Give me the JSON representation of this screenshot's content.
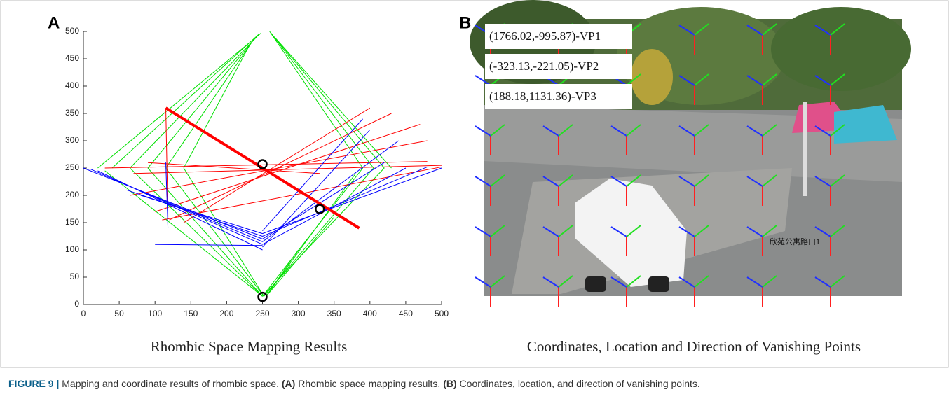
{
  "panel_a": {
    "label": "A",
    "caption": "Rhombic Space Mapping Results"
  },
  "panel_b": {
    "label": "B",
    "caption": "Coordinates, Location and Direction of Vanishing Points",
    "boxes": [
      "(1766.02,-995.87)-VP1",
      "(-323.13,-221.05)-VP2",
      "(188.18,1131.36)-VP3"
    ],
    "sign": "欣苑公寓路口1"
  },
  "figure_caption": {
    "label": "FIGURE 9 |",
    "text_1": "Mapping and coordinate results of rhombic space.",
    "ref_a": "(A)",
    "text_2": "Rhombic space mapping results.",
    "ref_b": "(B)",
    "text_3": "Coordinates, location, and direction of vanishing points."
  },
  "chart_data": {
    "type": "segments",
    "xlim": [
      0,
      500
    ],
    "ylim": [
      0,
      500
    ],
    "xticks": [
      0,
      50,
      100,
      150,
      200,
      250,
      300,
      350,
      400,
      450,
      500
    ],
    "yticks": [
      0,
      50,
      100,
      150,
      200,
      250,
      300,
      350,
      400,
      450,
      500
    ],
    "series": [
      {
        "color": "#00e000",
        "segments": [
          [
            248,
            497,
            20,
            250
          ],
          [
            245,
            495,
            40,
            250
          ],
          [
            242,
            490,
            65,
            250
          ],
          [
            238,
            485,
            90,
            250
          ],
          [
            235,
            480,
            115,
            250
          ],
          [
            232,
            475,
            140,
            250
          ],
          [
            260,
            500,
            390,
            250
          ],
          [
            262,
            497,
            405,
            250
          ],
          [
            265,
            492,
            420,
            250
          ],
          [
            268,
            488,
            430,
            250
          ],
          [
            65,
            250,
            250,
            15
          ],
          [
            90,
            250,
            250,
            15
          ],
          [
            115,
            250,
            252,
            15
          ],
          [
            140,
            250,
            252,
            15
          ],
          [
            30,
            245,
            250,
            15
          ],
          [
            390,
            250,
            250,
            15
          ],
          [
            405,
            250,
            252,
            15
          ],
          [
            420,
            250,
            250,
            15
          ],
          [
            380,
            240,
            255,
            15
          ],
          [
            350,
            160,
            255,
            15
          ],
          [
            300,
            100,
            255,
            15
          ]
        ]
      },
      {
        "color": "#ff0000",
        "segments": [
          [
            30,
            250,
            480,
            262
          ],
          [
            65,
            200,
            480,
            300
          ],
          [
            100,
            170,
            470,
            330
          ],
          [
            120,
            155,
            430,
            350
          ],
          [
            140,
            150,
            400,
            360
          ],
          [
            70,
            240,
            500,
            255
          ],
          [
            115,
            360,
            118,
            160
          ],
          [
            110,
            155,
            500,
            252
          ],
          [
            90,
            260,
            330,
            240
          ]
        ]
      },
      {
        "color": "#0000ff",
        "segments": [
          [
            0,
            250,
            250,
            120
          ],
          [
            10,
            248,
            250,
            110
          ],
          [
            20,
            245,
            250,
            100
          ],
          [
            40,
            230,
            250,
            115
          ],
          [
            60,
            210,
            250,
            125
          ],
          [
            80,
            200,
            250,
            130
          ],
          [
            250,
            120,
            420,
            260
          ],
          [
            250,
            110,
            450,
            250
          ],
          [
            250,
            125,
            480,
            252
          ],
          [
            250,
            130,
            500,
            250
          ],
          [
            250,
            105,
            400,
            320
          ],
          [
            250,
            115,
            440,
            300
          ],
          [
            250,
            135,
            390,
            340
          ],
          [
            115,
            260,
            118,
            140
          ],
          [
            100,
            110,
            250,
            108
          ]
        ]
      },
      {
        "color": "#ff0000",
        "width": 4,
        "segments": [
          [
            115,
            360,
            385,
            140
          ]
        ]
      }
    ],
    "points": {
      "color": "#000000",
      "x": [
        250,
        330,
        250
      ],
      "y": [
        257,
        175,
        14
      ]
    }
  }
}
